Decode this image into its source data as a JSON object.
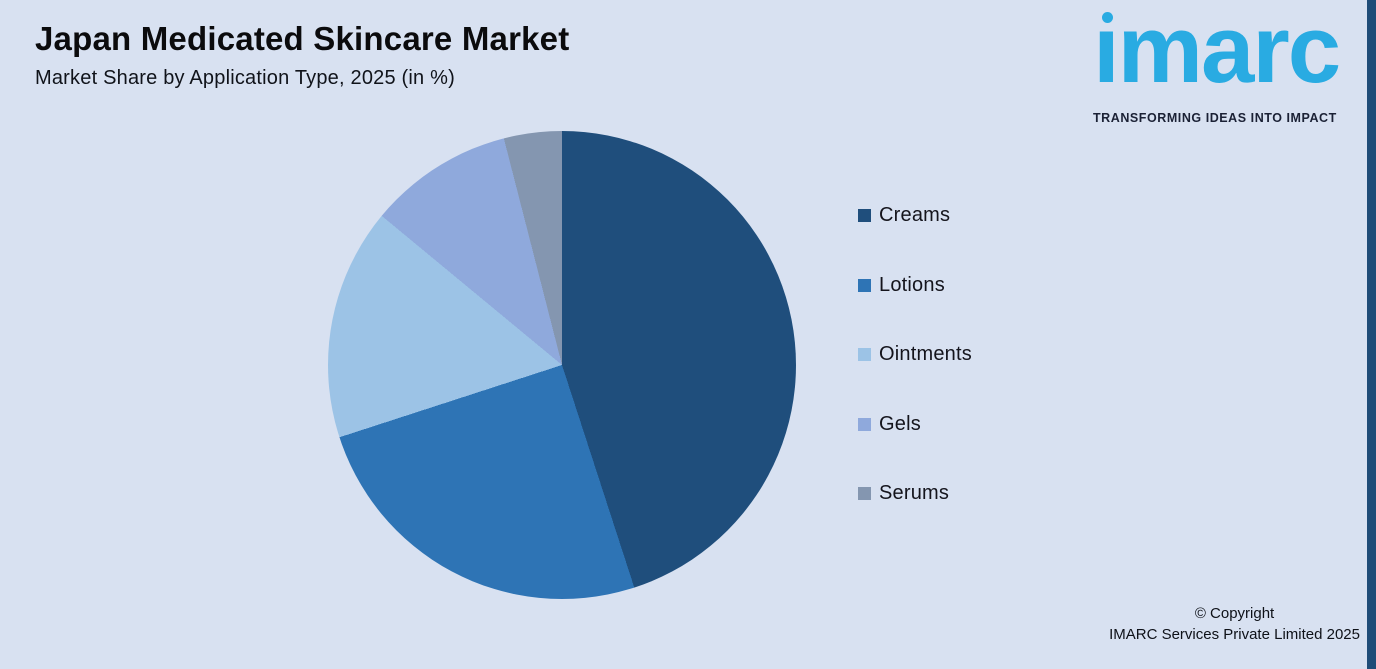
{
  "page": {
    "title": "Japan Medicated Skincare Market",
    "subtitle": "Market Share by Application Type, 2025 (in %)"
  },
  "logo": {
    "wordmark": "imarc",
    "tagline": "TRANSFORMING IDEAS INTO IMPACT",
    "brand_color": "#29ABE2",
    "tagline_color": "#1b2135"
  },
  "chart_data": {
    "type": "pie",
    "title": "Japan Medicated Skincare Market — Market Share by Application Type, 2025 (in %)",
    "labels": [
      "Creams",
      "Lotions",
      "Ointments",
      "Gels",
      "Serums"
    ],
    "values": [
      45,
      25,
      16,
      10,
      4
    ],
    "unit": "%",
    "colors": [
      "#1F4E7C",
      "#2E74B5",
      "#9CC3E6",
      "#8FA9DC",
      "#8496B0"
    ],
    "start_angle_deg": 0,
    "direction": "clockwise",
    "legend_position": "right",
    "data_labels_shown": false
  },
  "footer": {
    "line1": "© Copyright",
    "line2": "IMARC Services Private Limited 2025"
  },
  "theme": {
    "background": "#D8E1F1",
    "right_bar_color": "#1E4C78"
  }
}
